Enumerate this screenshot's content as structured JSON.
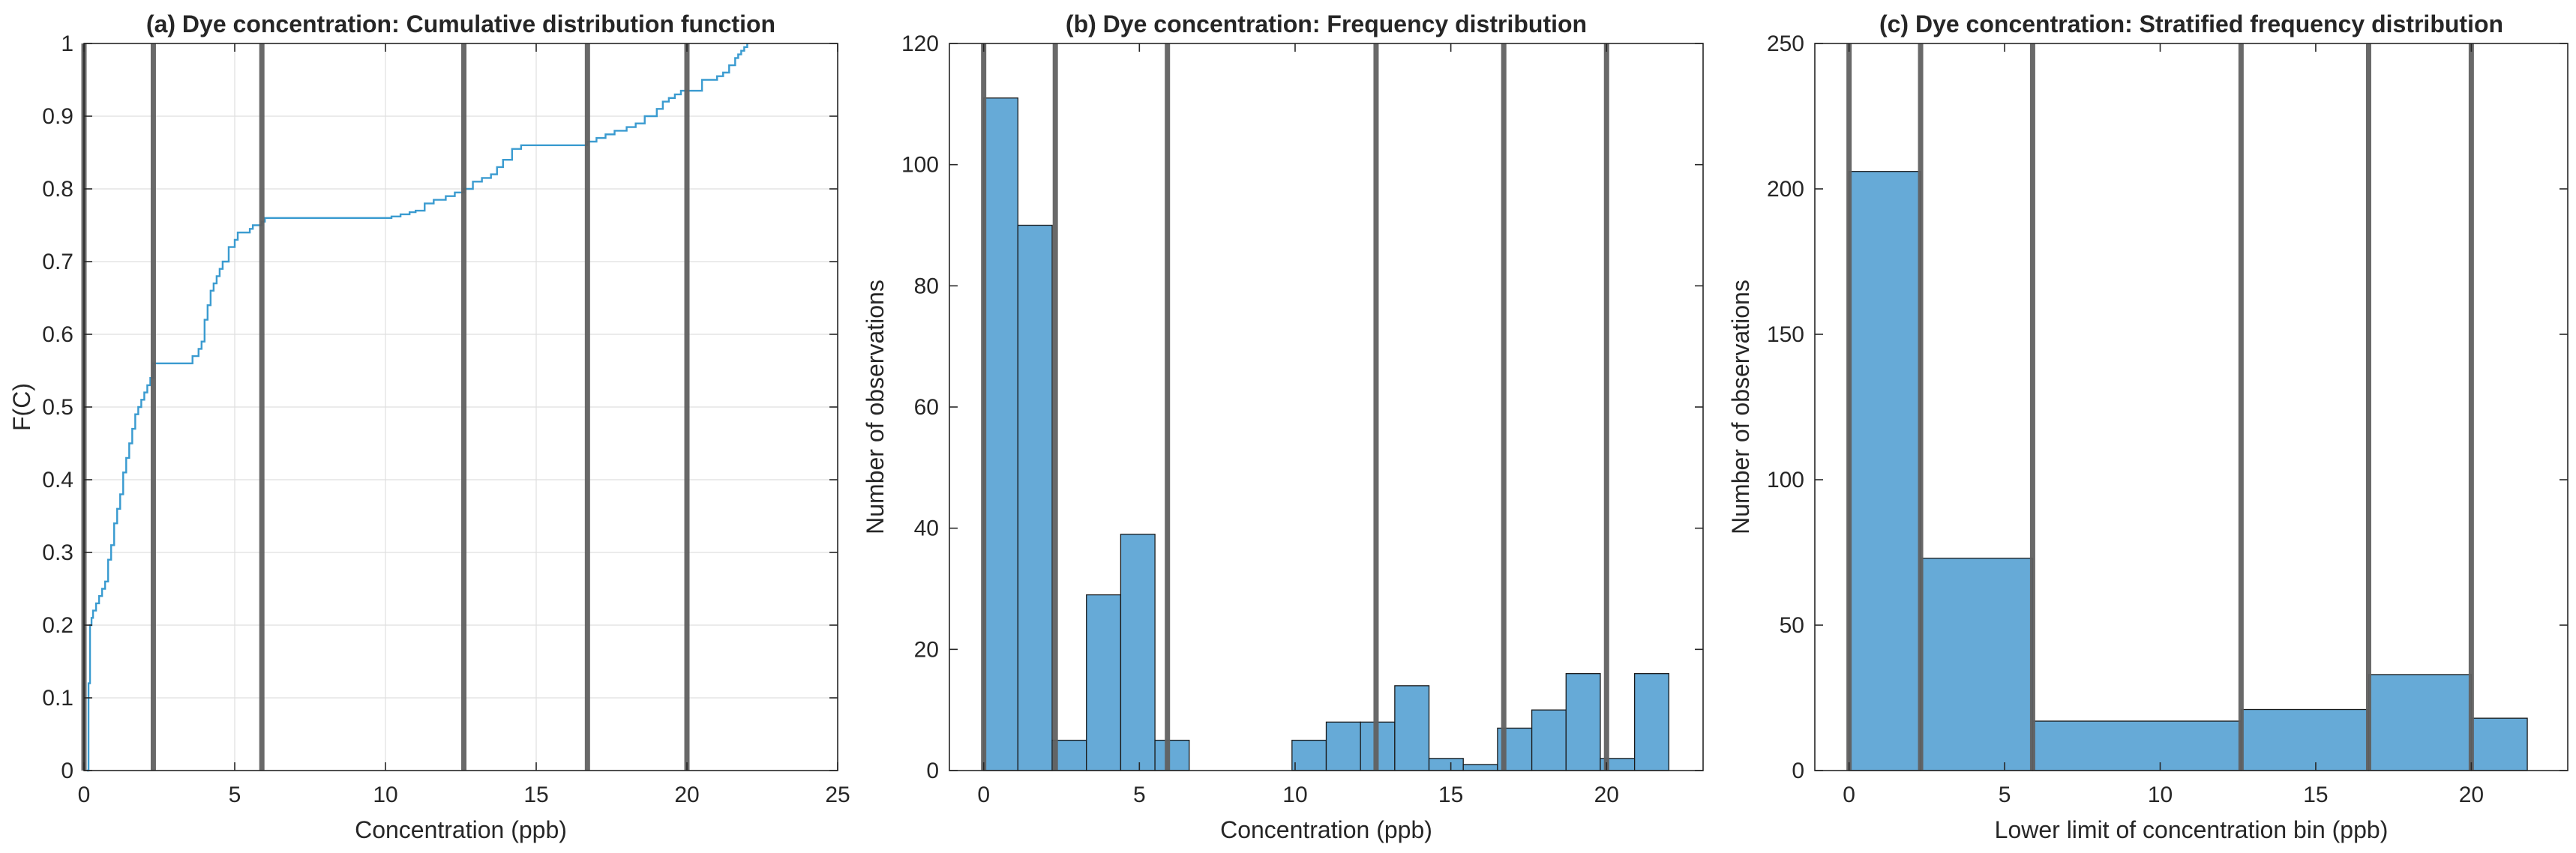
{
  "colors": {
    "bar_fill": "#66aad7",
    "bar_edge": "#1a1a1a",
    "line": "#3a9bd0",
    "vline": "#616161",
    "grid": "#dfdfdf",
    "axis": "#262626"
  },
  "chart_data": [
    {
      "id": "a",
      "type": "line",
      "title": "(a) Dye concentration: Cumulative distribution function",
      "xlabel": "Concentration (ppb)",
      "ylabel": "F(C)",
      "xlim": [
        0,
        25
      ],
      "ylim": [
        0,
        1
      ],
      "xticks": [
        0,
        5,
        10,
        15,
        20,
        25
      ],
      "yticks": [
        0,
        0.1,
        0.2,
        0.3,
        0.4,
        0.5,
        0.6,
        0.7,
        0.8,
        0.9,
        1
      ],
      "grid": true,
      "vlines": [
        0,
        2.3,
        5.9,
        12.6,
        16.7,
        20
      ],
      "series": [
        {
          "name": "CDF",
          "x": [
            0.1,
            0.15,
            0.2,
            0.25,
            0.3,
            0.4,
            0.5,
            0.6,
            0.7,
            0.8,
            0.9,
            1.0,
            1.1,
            1.2,
            1.3,
            1.4,
            1.5,
            1.6,
            1.7,
            1.8,
            1.9,
            2.0,
            2.1,
            2.2,
            2.3,
            2.4,
            3.5,
            3.6,
            3.8,
            3.9,
            4.0,
            4.1,
            4.2,
            4.3,
            4.4,
            4.5,
            4.6,
            4.8,
            5.0,
            5.1,
            5.3,
            5.5,
            5.6,
            5.8,
            5.9,
            6.0,
            10.0,
            10.2,
            10.5,
            10.8,
            11.0,
            11.3,
            11.6,
            12.0,
            12.3,
            12.6,
            12.9,
            13.2,
            13.5,
            13.7,
            13.9,
            14.2,
            14.5,
            15.0,
            15.5,
            16.0,
            16.7,
            17.0,
            17.3,
            17.6,
            18.0,
            18.3,
            18.6,
            19.0,
            19.2,
            19.4,
            19.6,
            19.8,
            20.5,
            21.0,
            21.2,
            21.4,
            21.6,
            21.7,
            21.8,
            21.9,
            22.0
          ],
          "y": [
            0.0,
            0.12,
            0.2,
            0.21,
            0.22,
            0.23,
            0.24,
            0.25,
            0.26,
            0.29,
            0.31,
            0.34,
            0.36,
            0.38,
            0.41,
            0.43,
            0.45,
            0.47,
            0.49,
            0.5,
            0.51,
            0.52,
            0.53,
            0.54,
            0.56,
            0.56,
            0.56,
            0.57,
            0.58,
            0.59,
            0.62,
            0.64,
            0.66,
            0.67,
            0.68,
            0.69,
            0.7,
            0.72,
            0.73,
            0.74,
            0.74,
            0.745,
            0.75,
            0.75,
            0.755,
            0.76,
            0.76,
            0.762,
            0.765,
            0.768,
            0.77,
            0.78,
            0.785,
            0.79,
            0.795,
            0.8,
            0.81,
            0.815,
            0.82,
            0.83,
            0.84,
            0.855,
            0.86,
            0.86,
            0.86,
            0.86,
            0.865,
            0.87,
            0.875,
            0.88,
            0.885,
            0.89,
            0.9,
            0.91,
            0.92,
            0.925,
            0.93,
            0.935,
            0.95,
            0.955,
            0.96,
            0.97,
            0.98,
            0.985,
            0.99,
            0.995,
            1.0
          ]
        }
      ]
    },
    {
      "id": "b",
      "type": "bar",
      "title": "(b) Dye concentration: Frequency distribution",
      "xlabel": "Concentration (ppb)",
      "ylabel": "Number of observations",
      "xlim": [
        -1.1,
        23.1
      ],
      "ylim": [
        0,
        120
      ],
      "xticks": [
        0,
        5,
        10,
        15,
        20
      ],
      "yticks": [
        0,
        20,
        40,
        60,
        80,
        100,
        120
      ],
      "grid": false,
      "vlines": [
        0,
        2.3,
        5.9,
        12.6,
        16.7,
        20
      ],
      "bin_width": 1.1,
      "bin_starts": [
        0,
        1.1,
        2.2,
        3.3,
        4.4,
        5.5,
        6.6,
        7.7,
        8.8,
        9.9,
        11.0,
        12.1,
        13.2,
        14.3,
        15.4,
        16.5,
        17.6,
        18.7,
        19.8,
        20.9
      ],
      "values": [
        111,
        90,
        5,
        29,
        39,
        5,
        0,
        0,
        0,
        5,
        8,
        8,
        14,
        2,
        1,
        7,
        10,
        16,
        2,
        16
      ]
    },
    {
      "id": "c",
      "type": "bar",
      "title": "(c) Dye concentration: Stratified frequency distribution",
      "xlabel": "Lower limit of concentration bin (ppb)",
      "ylabel": "Number of observations",
      "xlim": [
        -1.1,
        23.1
      ],
      "ylim": [
        0,
        250
      ],
      "xticks": [
        0,
        5,
        10,
        15,
        20
      ],
      "yticks": [
        0,
        50,
        100,
        150,
        200,
        250
      ],
      "grid": false,
      "vlines": [
        0,
        2.3,
        5.9,
        12.6,
        16.7,
        20
      ],
      "bin_edges": [
        0,
        2.3,
        5.9,
        12.6,
        16.7,
        20,
        21.8
      ],
      "values": [
        206,
        73,
        17,
        21,
        33,
        18
      ]
    }
  ]
}
